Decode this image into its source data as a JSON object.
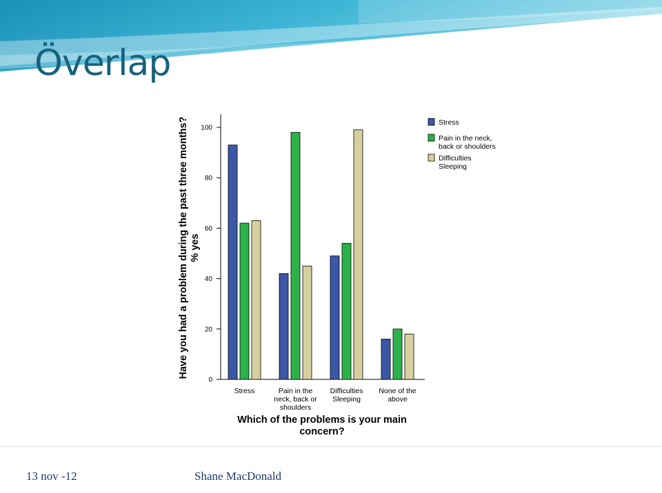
{
  "slide": {
    "title": "Överlap",
    "footer_date": "13 nov -12",
    "footer_author": "Shane MacDonald"
  },
  "chart_data": {
    "type": "bar",
    "title": "",
    "ylabel_line1": "Have you had a problem during the past three months?",
    "ylabel_line2": "% yes",
    "xlabel_line1": "Which of the problems is your main",
    "xlabel_line2": "concern?",
    "ylim": [
      0,
      100
    ],
    "yticks": [
      "0",
      "20",
      "40",
      "60",
      "80",
      "100"
    ],
    "categories": [
      [
        "Stress"
      ],
      [
        "Pain in the",
        "neck, back or",
        "shoulders"
      ],
      [
        "Difficulties",
        "Sleeping"
      ],
      [
        "None of the",
        "above"
      ]
    ],
    "series": [
      {
        "name": [
          "Stress"
        ],
        "color": "#3c57a6",
        "values": [
          93,
          42,
          49,
          16
        ]
      },
      {
        "name": [
          "Pain in the neck,",
          "back or shoulders"
        ],
        "color": "#2db24a",
        "values": [
          62,
          98,
          54,
          20
        ]
      },
      {
        "name": [
          "Difficulties",
          "Sleeping"
        ],
        "color": "#d6d0a0",
        "values": [
          63,
          45,
          99,
          18
        ]
      }
    ],
    "legend_position": "top-right",
    "grid": false
  }
}
